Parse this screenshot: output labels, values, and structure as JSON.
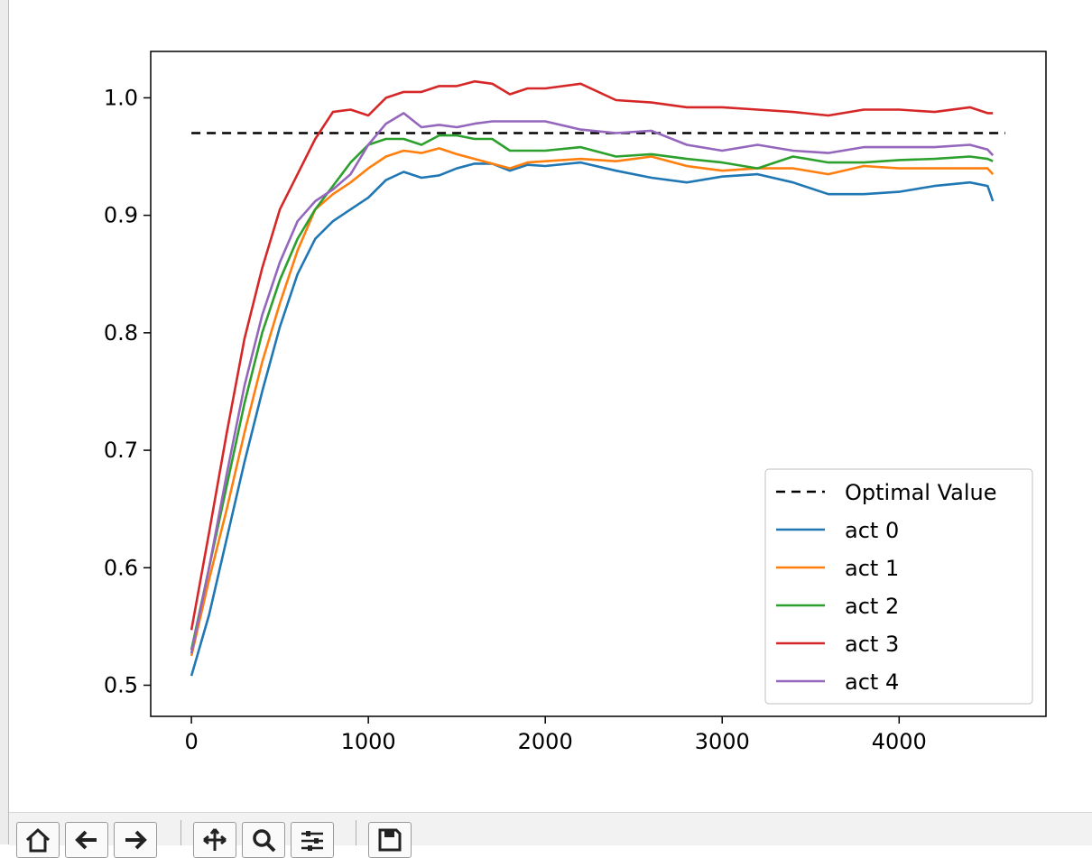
{
  "chart_data": {
    "type": "line",
    "title": "",
    "xlabel": "",
    "ylabel": "",
    "xlim": [
      -230,
      4830
    ],
    "ylim": [
      0.4735,
      1.0395
    ],
    "xticks": [
      0,
      1000,
      2000,
      3000,
      4000
    ],
    "xtick_labels": [
      "0",
      "1000",
      "2000",
      "3000",
      "4000"
    ],
    "yticks": [
      0.5,
      0.6,
      0.7,
      0.8,
      0.9,
      1.0
    ],
    "ytick_labels": [
      "0.5",
      "0.6",
      "0.7",
      "0.8",
      "0.9",
      "1.0"
    ],
    "grid": false,
    "legend_position": "lower right",
    "series": [
      {
        "name": "Optimal Value",
        "color": "#000000",
        "style": "dashed",
        "x": [
          0,
          4600
        ],
        "y": [
          0.97,
          0.97
        ]
      },
      {
        "name": "act 0",
        "color": "#1f77b4",
        "style": "solid",
        "x": [
          0,
          100,
          200,
          300,
          400,
          500,
          600,
          700,
          800,
          900,
          1000,
          1100,
          1200,
          1300,
          1400,
          1500,
          1600,
          1700,
          1800,
          1900,
          2000,
          2200,
          2400,
          2600,
          2800,
          3000,
          3200,
          3400,
          3600,
          3800,
          4000,
          4200,
          4400,
          4500,
          4530
        ],
        "y": [
          0.508,
          0.56,
          0.625,
          0.69,
          0.75,
          0.805,
          0.85,
          0.88,
          0.895,
          0.905,
          0.915,
          0.93,
          0.937,
          0.932,
          0.934,
          0.94,
          0.944,
          0.944,
          0.938,
          0.943,
          0.942,
          0.945,
          0.938,
          0.932,
          0.928,
          0.933,
          0.935,
          0.928,
          0.918,
          0.918,
          0.92,
          0.925,
          0.928,
          0.925,
          0.912
        ]
      },
      {
        "name": "act 1",
        "color": "#ff7f0e",
        "style": "solid",
        "x": [
          0,
          100,
          200,
          300,
          400,
          500,
          600,
          700,
          800,
          900,
          1000,
          1100,
          1200,
          1300,
          1400,
          1500,
          1600,
          1700,
          1800,
          1900,
          2000,
          2200,
          2400,
          2600,
          2800,
          3000,
          3200,
          3400,
          3600,
          3800,
          4000,
          4200,
          4400,
          4500,
          4530
        ],
        "y": [
          0.525,
          0.59,
          0.65,
          0.715,
          0.775,
          0.825,
          0.87,
          0.905,
          0.918,
          0.928,
          0.94,
          0.95,
          0.955,
          0.953,
          0.957,
          0.952,
          0.948,
          0.944,
          0.94,
          0.945,
          0.946,
          0.948,
          0.946,
          0.95,
          0.942,
          0.938,
          0.94,
          0.94,
          0.935,
          0.942,
          0.94,
          0.94,
          0.94,
          0.94,
          0.935
        ]
      },
      {
        "name": "act 2",
        "color": "#2ca02c",
        "style": "solid",
        "x": [
          0,
          100,
          200,
          300,
          400,
          500,
          600,
          700,
          800,
          900,
          1000,
          1100,
          1200,
          1300,
          1400,
          1500,
          1600,
          1700,
          1800,
          1900,
          2000,
          2200,
          2400,
          2600,
          2800,
          3000,
          3200,
          3400,
          3600,
          3800,
          4000,
          4200,
          4400,
          4500,
          4530
        ],
        "y": [
          0.53,
          0.6,
          0.67,
          0.74,
          0.8,
          0.845,
          0.88,
          0.905,
          0.925,
          0.945,
          0.96,
          0.965,
          0.965,
          0.96,
          0.968,
          0.968,
          0.965,
          0.965,
          0.955,
          0.955,
          0.955,
          0.958,
          0.95,
          0.952,
          0.948,
          0.945,
          0.94,
          0.95,
          0.945,
          0.945,
          0.947,
          0.948,
          0.95,
          0.948,
          0.946
        ]
      },
      {
        "name": "act 3",
        "color": "#d62728",
        "style": "solid",
        "x": [
          0,
          100,
          200,
          300,
          400,
          500,
          600,
          700,
          800,
          900,
          1000,
          1100,
          1200,
          1300,
          1400,
          1500,
          1600,
          1700,
          1800,
          1900,
          2000,
          2200,
          2400,
          2600,
          2800,
          3000,
          3200,
          3400,
          3600,
          3800,
          4000,
          4200,
          4400,
          4500,
          4530
        ],
        "y": [
          0.547,
          0.63,
          0.715,
          0.795,
          0.855,
          0.905,
          0.935,
          0.965,
          0.988,
          0.99,
          0.985,
          1.0,
          1.005,
          1.005,
          1.01,
          1.01,
          1.014,
          1.012,
          1.003,
          1.008,
          1.008,
          1.012,
          0.998,
          0.996,
          0.992,
          0.992,
          0.99,
          0.988,
          0.985,
          0.99,
          0.99,
          0.988,
          0.992,
          0.987,
          0.987
        ]
      },
      {
        "name": "act 4",
        "color": "#9467bd",
        "style": "solid",
        "x": [
          0,
          100,
          200,
          300,
          400,
          500,
          600,
          700,
          800,
          900,
          1000,
          1100,
          1200,
          1300,
          1400,
          1500,
          1600,
          1700,
          1800,
          1900,
          2000,
          2200,
          2400,
          2600,
          2800,
          3000,
          3200,
          3400,
          3600,
          3800,
          4000,
          4200,
          4400,
          4500,
          4530
        ],
        "y": [
          0.527,
          0.6,
          0.68,
          0.755,
          0.815,
          0.86,
          0.895,
          0.912,
          0.922,
          0.935,
          0.96,
          0.978,
          0.987,
          0.975,
          0.977,
          0.975,
          0.978,
          0.98,
          0.98,
          0.98,
          0.98,
          0.973,
          0.97,
          0.972,
          0.96,
          0.955,
          0.96,
          0.955,
          0.953,
          0.958,
          0.958,
          0.958,
          0.96,
          0.956,
          0.951
        ]
      }
    ]
  },
  "toolbar": {
    "buttons": [
      {
        "name": "home-icon"
      },
      {
        "name": "back-arrow-icon"
      },
      {
        "name": "forward-arrow-icon"
      },
      {
        "name": "pan-icon"
      },
      {
        "name": "zoom-icon"
      },
      {
        "name": "configure-subplots-icon"
      },
      {
        "name": "save-icon"
      }
    ]
  }
}
